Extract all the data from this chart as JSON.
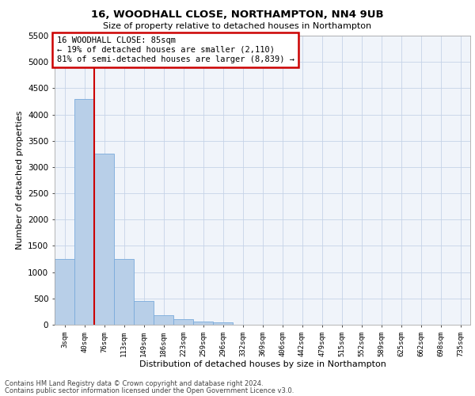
{
  "title_line1": "16, WOODHALL CLOSE, NORTHAMPTON, NN4 9UB",
  "title_line2": "Size of property relative to detached houses in Northampton",
  "xlabel": "Distribution of detached houses by size in Northampton",
  "ylabel": "Number of detached properties",
  "footer_line1": "Contains HM Land Registry data © Crown copyright and database right 2024.",
  "footer_line2": "Contains public sector information licensed under the Open Government Licence v3.0.",
  "annotation_line1": "16 WOODHALL CLOSE: 85sqm",
  "annotation_line2": "← 19% of detached houses are smaller (2,110)",
  "annotation_line3": "81% of semi-detached houses are larger (8,839) →",
  "bar_values": [
    1250,
    4300,
    3250,
    1250,
    450,
    175,
    100,
    60,
    50,
    0,
    0,
    0,
    0,
    0,
    0,
    0,
    0,
    0,
    0,
    0,
    0
  ],
  "categories": [
    "3sqm",
    "40sqm",
    "76sqm",
    "113sqm",
    "149sqm",
    "186sqm",
    "223sqm",
    "259sqm",
    "296sqm",
    "332sqm",
    "369sqm",
    "406sqm",
    "442sqm",
    "479sqm",
    "515sqm",
    "552sqm",
    "589sqm",
    "625sqm",
    "662sqm",
    "698sqm",
    "735sqm"
  ],
  "bar_color": "#b8cfe8",
  "bar_edge_color": "#7aabdb",
  "vline_color": "#cc0000",
  "annotation_box_color": "#cc0000",
  "vline_x_index": 2,
  "ylim": [
    0,
    5500
  ],
  "yticks": [
    0,
    500,
    1000,
    1500,
    2000,
    2500,
    3000,
    3500,
    4000,
    4500,
    5000,
    5500
  ],
  "background_color": "#f0f4fa",
  "grid_color": "#c5d3e8",
  "fig_bg": "#ffffff"
}
